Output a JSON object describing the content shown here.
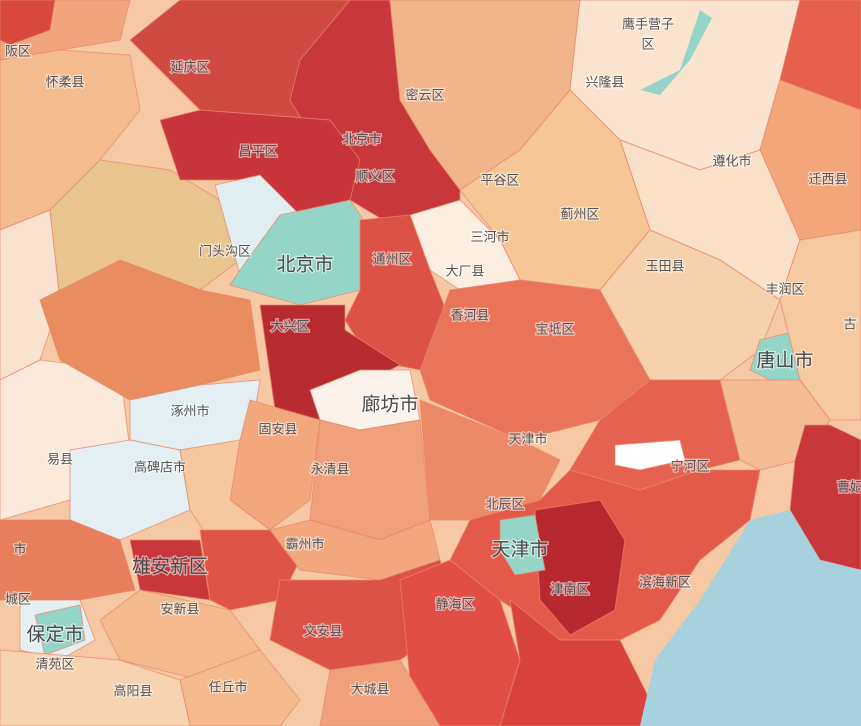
{
  "map": {
    "labels": [
      {
        "text": "阪区"
      },
      {
        "text": "延庆区"
      },
      {
        "text": "怀柔县"
      },
      {
        "text": "密云区"
      },
      {
        "text": "兴隆县"
      },
      {
        "text": "鹰手营子"
      },
      {
        "text": "区"
      },
      {
        "text": "昌平区"
      },
      {
        "text": "北京市"
      },
      {
        "text": "顺义区"
      },
      {
        "text": "平谷区"
      },
      {
        "text": "遵化市"
      },
      {
        "text": "迁西县"
      },
      {
        "text": "蓟州区"
      },
      {
        "text": "三河市"
      },
      {
        "text": "门头沟区"
      },
      {
        "text": "北京市"
      },
      {
        "text": "通州区"
      },
      {
        "text": "大厂县"
      },
      {
        "text": "玉田县"
      },
      {
        "text": "丰润区"
      },
      {
        "text": "大兴区"
      },
      {
        "text": "香河县"
      },
      {
        "text": "宝坻区"
      },
      {
        "text": "唐山市"
      },
      {
        "text": "古"
      },
      {
        "text": "涿州市"
      },
      {
        "text": "廊坊市"
      },
      {
        "text": "固安县"
      },
      {
        "text": "天津市"
      },
      {
        "text": "宁河区"
      },
      {
        "text": "易县"
      },
      {
        "text": "高碑店市"
      },
      {
        "text": "永清县"
      },
      {
        "text": "曹妃"
      },
      {
        "text": "北辰区"
      },
      {
        "text": "霸州市"
      },
      {
        "text": "天津市"
      },
      {
        "text": "雄安新区"
      },
      {
        "text": "津南区"
      },
      {
        "text": "滨海新区"
      },
      {
        "text": "安新县"
      },
      {
        "text": "城区"
      },
      {
        "text": "保定市"
      },
      {
        "text": "静海区"
      },
      {
        "text": "文安县"
      },
      {
        "text": "清苑区"
      },
      {
        "text": "大城县"
      },
      {
        "text": "任丘市"
      },
      {
        "text": "高阳县"
      },
      {
        "text": "市"
      }
    ]
  }
}
